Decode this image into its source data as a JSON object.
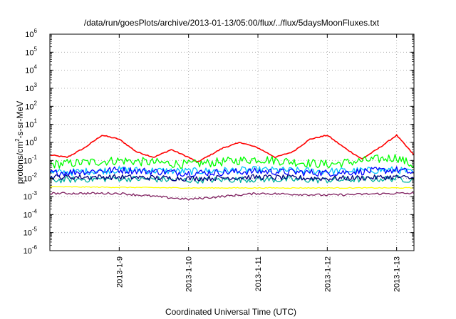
{
  "chart_data": {
    "type": "line",
    "title": "/data/run/goesPlots/archive/2013-01-13/05:00/flux/../flux/5daysMoonFluxes.txt",
    "xlabel": "Coordinated Universal Time (UTC)",
    "ylabel_parts": [
      "protons/cm",
      "2",
      "-s-sr-MeV"
    ],
    "yscale": "log",
    "ylim": [
      1e-06,
      1000000.0
    ],
    "xlim": [
      "2013-01-08T00:00",
      "2013-01-13T06:00"
    ],
    "x_ticks": [
      "2013-1-9",
      "2013-1-10",
      "2013-1-11",
      "2013-1-12",
      "2013-1-13"
    ],
    "y_ticks": [
      {
        "base": "10",
        "exp": "6"
      },
      {
        "base": "10",
        "exp": "5"
      },
      {
        "base": "10",
        "exp": "4"
      },
      {
        "base": "10",
        "exp": "3"
      },
      {
        "base": "10",
        "exp": "2"
      },
      {
        "base": "10",
        "exp": "1"
      },
      {
        "base": "10",
        "exp": "0"
      },
      {
        "base": "10",
        "exp": "-1"
      },
      {
        "base": "10",
        "exp": "-2"
      },
      {
        "base": "10",
        "exp": "-3"
      },
      {
        "base": "10",
        "exp": "-4"
      },
      {
        "base": "10",
        "exp": "-5"
      },
      {
        "base": "10",
        "exp": "-6"
      }
    ],
    "grid": true,
    "legend": "none",
    "series": [
      {
        "color": "#ff0000",
        "points": [
          [
            "2013-01-08T00:00",
            0.2
          ],
          [
            "2013-01-08T06:00",
            0.15
          ],
          [
            "2013-01-08T12:00",
            0.5
          ],
          [
            "2013-01-08T18:00",
            2.5
          ],
          [
            "2013-01-09T00:00",
            1.5
          ],
          [
            "2013-01-09T06:00",
            0.3
          ],
          [
            "2013-01-09T12:00",
            0.15
          ],
          [
            "2013-01-09T18:00",
            0.4
          ],
          [
            "2013-01-10T00:00",
            0.15
          ],
          [
            "2013-01-10T03:00",
            0.08
          ],
          [
            "2013-01-10T12:00",
            0.5
          ],
          [
            "2013-01-10T18:00",
            1.0
          ],
          [
            "2013-01-11T00:00",
            0.5
          ],
          [
            "2013-01-11T06:00",
            0.15
          ],
          [
            "2013-01-11T12:00",
            0.3
          ],
          [
            "2013-01-11T18:00",
            1.5
          ],
          [
            "2013-01-12T00:00",
            2.5
          ],
          [
            "2013-01-12T06:00",
            0.5
          ],
          [
            "2013-01-12T12:00",
            0.12
          ],
          [
            "2013-01-12T18:00",
            0.5
          ],
          [
            "2013-01-13T00:00",
            2.5
          ],
          [
            "2013-01-13T06:00",
            0.2
          ]
        ]
      },
      {
        "color": "#00ff00",
        "points": [
          [
            "2013-01-08T00:00",
            0.06
          ],
          [
            "2013-01-09T00:00",
            0.1
          ],
          [
            "2013-01-10T00:00",
            0.06
          ],
          [
            "2013-01-11T00:00",
            0.12
          ],
          [
            "2013-01-12T00:00",
            0.06
          ],
          [
            "2013-01-13T00:00",
            0.15
          ],
          [
            "2013-01-13T06:00",
            0.05
          ]
        ]
      },
      {
        "color": "#00c0ff",
        "points": [
          [
            "2013-01-08T00:00",
            0.02
          ],
          [
            "2013-01-09T00:00",
            0.03
          ],
          [
            "2013-01-10T00:00",
            0.025
          ],
          [
            "2013-01-11T00:00",
            0.03
          ],
          [
            "2013-01-12T00:00",
            0.025
          ],
          [
            "2013-01-13T00:00",
            0.03
          ],
          [
            "2013-01-13T06:00",
            0.02
          ]
        ]
      },
      {
        "color": "#0000ff",
        "points": [
          [
            "2013-01-08T00:00",
            0.02
          ],
          [
            "2013-01-09T00:00",
            0.03
          ],
          [
            "2013-01-10T00:00",
            0.02
          ],
          [
            "2013-01-11T00:00",
            0.025
          ],
          [
            "2013-01-12T00:00",
            0.02
          ],
          [
            "2013-01-13T00:00",
            0.03
          ],
          [
            "2013-01-13T06:00",
            0.02
          ]
        ]
      },
      {
        "color": "#00b0a0",
        "points": [
          [
            "2013-01-08T00:00",
            0.008
          ],
          [
            "2013-01-09T00:00",
            0.01
          ],
          [
            "2013-01-10T00:00",
            0.008
          ],
          [
            "2013-01-11T00:00",
            0.009
          ],
          [
            "2013-01-12T00:00",
            0.008
          ],
          [
            "2013-01-13T00:00",
            0.01
          ],
          [
            "2013-01-13T06:00",
            0.008
          ]
        ]
      },
      {
        "color": "#000080",
        "points": [
          [
            "2013-01-08T00:00",
            0.012
          ],
          [
            "2013-01-09T00:00",
            0.012
          ],
          [
            "2013-01-10T00:00",
            0.01
          ],
          [
            "2013-01-11T00:00",
            0.012
          ],
          [
            "2013-01-12T00:00",
            0.01
          ],
          [
            "2013-01-13T00:00",
            0.012
          ],
          [
            "2013-01-13T06:00",
            0.01
          ]
        ]
      },
      {
        "color": "#ffff00",
        "points": [
          [
            "2013-01-08T00:00",
            0.0035
          ],
          [
            "2013-01-10T00:00",
            0.003
          ],
          [
            "2013-01-12T00:00",
            0.003
          ],
          [
            "2013-01-13T06:00",
            0.003
          ]
        ]
      },
      {
        "color": "#7f1f5f",
        "points": [
          [
            "2013-01-08T00:00",
            0.0015
          ],
          [
            "2013-01-09T00:00",
            0.0015
          ],
          [
            "2013-01-10T00:00",
            0.0007
          ],
          [
            "2013-01-11T00:00",
            0.0015
          ],
          [
            "2013-01-12T00:00",
            0.0012
          ],
          [
            "2013-01-13T00:00",
            0.0015
          ],
          [
            "2013-01-13T06:00",
            0.0015
          ]
        ]
      }
    ]
  }
}
